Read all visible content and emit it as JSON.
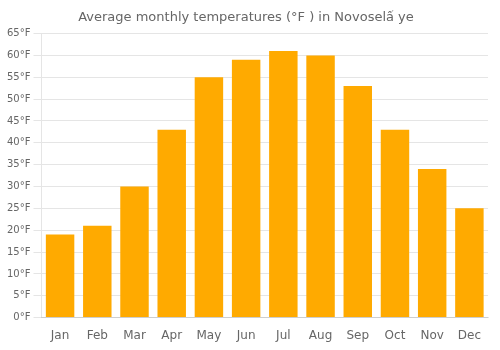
{
  "chart_data": {
    "type": "bar",
    "title": "Average monthly temperatures (°F ) in Novoselấ ye",
    "categories": [
      "Jan",
      "Feb",
      "Mar",
      "Apr",
      "May",
      "Jun",
      "Jul",
      "Aug",
      "Sep",
      "Oct",
      "Nov",
      "Dec"
    ],
    "values": [
      19,
      21,
      30,
      43,
      55,
      59,
      61,
      60,
      53,
      43,
      34,
      25
    ],
    "color": "#FFAA00",
    "ylim": [
      0,
      65
    ],
    "yticks": [
      {
        "value": 0,
        "label": "0°F"
      },
      {
        "value": 5,
        "label": "5°F"
      },
      {
        "value": 10,
        "label": "10°F"
      },
      {
        "value": 15,
        "label": "15°F"
      },
      {
        "value": 20,
        "label": "20°F"
      },
      {
        "value": 25,
        "label": "25°F"
      },
      {
        "value": 30,
        "label": "30°F"
      },
      {
        "value": 35,
        "label": "35°F"
      },
      {
        "value": 40,
        "label": "40°F"
      },
      {
        "value": 45,
        "label": "45°F"
      },
      {
        "value": 50,
        "label": "50°F"
      },
      {
        "value": 55,
        "label": "55°F"
      },
      {
        "value": 60,
        "label": "60°F"
      },
      {
        "value": 65,
        "label": "65°F"
      }
    ],
    "grid": true
  }
}
